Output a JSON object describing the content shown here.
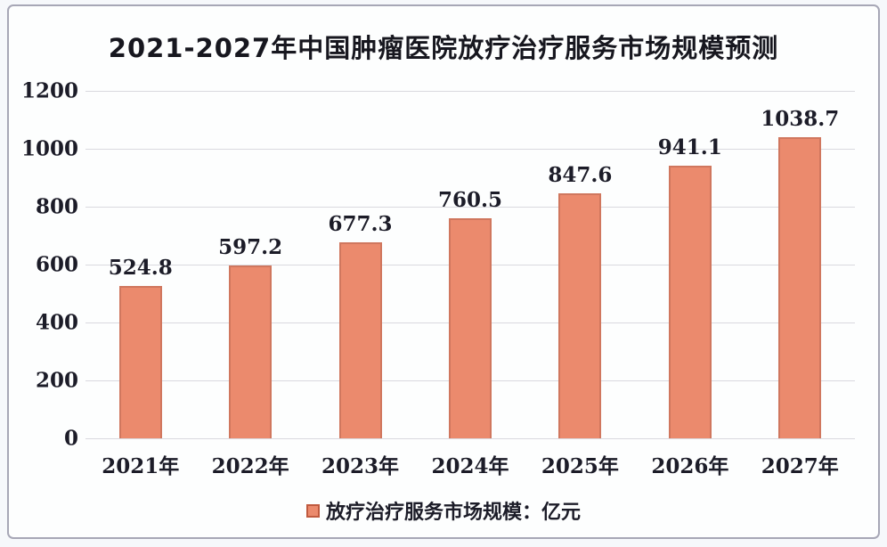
{
  "title": "2021-2027年中国肿瘤医院放疗治疗服务市场规模预测",
  "legend": {
    "label": "放疗治疗服务市场规模：亿元"
  },
  "colors": {
    "bar_fill": "#eb8a6d",
    "bar_border": "#d0775e",
    "legend_marker_border": "#c05a3f",
    "gridline": "#d9d9df",
    "card_border": "#a7a7b6",
    "text": "#1c1c28",
    "card_background": "#fdfefe",
    "page_background": "#f6f8fb"
  },
  "chart_data": {
    "type": "bar",
    "title": "2021-2027年中国肿瘤医院放疗治疗服务市场规模预测",
    "categories": [
      "2021年",
      "2022年",
      "2023年",
      "2024年",
      "2025年",
      "2026年",
      "2027年"
    ],
    "values": [
      524.8,
      597.2,
      677.3,
      760.5,
      847.6,
      941.1,
      1038.7
    ],
    "value_labels": [
      "524.8",
      "597.2",
      "677.3",
      "760.5",
      "847.6",
      "941.1",
      "1038.7"
    ],
    "series_name": "放疗治疗服务市场规模：亿元",
    "unit": "亿元",
    "xlabel": "",
    "ylabel": "",
    "ylim": [
      0,
      1200
    ],
    "yticks": [
      0,
      200,
      400,
      600,
      800,
      1000,
      1200
    ],
    "grid": true,
    "legend_position": "bottom"
  }
}
